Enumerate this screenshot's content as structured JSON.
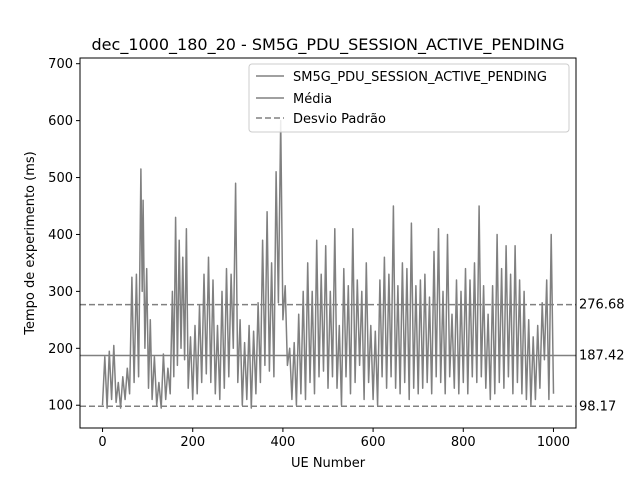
{
  "chart_data": {
    "type": "line",
    "title": "dec_1000_180_20 - SM5G_PDU_SESSION_ACTIVE_PENDING",
    "xlabel": "UE Number",
    "ylabel": "Tempo de experimento (ms)",
    "xlim": [
      -50,
      1050
    ],
    "ylim": [
      60,
      710
    ],
    "x_ticks": [
      0,
      200,
      400,
      600,
      800,
      1000
    ],
    "y_ticks": [
      100,
      200,
      300,
      400,
      500,
      600,
      700
    ],
    "grid": false,
    "legend_position": "upper-right",
    "series": [
      {
        "name": "SM5G_PDU_SESSION_ACTIVE_PENDING",
        "color": "#808080",
        "style": "solid"
      },
      {
        "name": "Média",
        "color": "#808080",
        "style": "solid"
      },
      {
        "name": "Desvio Padrão",
        "color": "#808080",
        "style": "dashed"
      }
    ],
    "peaks": [
      [
        0,
        100
      ],
      [
        5,
        185
      ],
      [
        10,
        95
      ],
      [
        15,
        195
      ],
      [
        20,
        110
      ],
      [
        25,
        205
      ],
      [
        30,
        105
      ],
      [
        35,
        140
      ],
      [
        40,
        95
      ],
      [
        45,
        150
      ],
      [
        50,
        110
      ],
      [
        55,
        165
      ],
      [
        60,
        120
      ],
      [
        65,
        325
      ],
      [
        70,
        140
      ],
      [
        75,
        330
      ],
      [
        80,
        150
      ],
      [
        85,
        515
      ],
      [
        88,
        300
      ],
      [
        90,
        460
      ],
      [
        94,
        200
      ],
      [
        98,
        340
      ],
      [
        102,
        130
      ],
      [
        106,
        250
      ],
      [
        110,
        110
      ],
      [
        115,
        185
      ],
      [
        120,
        100
      ],
      [
        125,
        140
      ],
      [
        130,
        95
      ],
      [
        135,
        190
      ],
      [
        140,
        110
      ],
      [
        145,
        165
      ],
      [
        150,
        120
      ],
      [
        155,
        300
      ],
      [
        158,
        150
      ],
      [
        162,
        430
      ],
      [
        166,
        170
      ],
      [
        170,
        390
      ],
      [
        174,
        200
      ],
      [
        178,
        360
      ],
      [
        182,
        180
      ],
      [
        186,
        410
      ],
      [
        190,
        130
      ],
      [
        195,
        220
      ],
      [
        200,
        110
      ],
      [
        205,
        240
      ],
      [
        210,
        120
      ],
      [
        215,
        275
      ],
      [
        220,
        140
      ],
      [
        225,
        330
      ],
      [
        230,
        155
      ],
      [
        235,
        360
      ],
      [
        240,
        140
      ],
      [
        245,
        320
      ],
      [
        250,
        120
      ],
      [
        255,
        240
      ],
      [
        260,
        110
      ],
      [
        265,
        300
      ],
      [
        270,
        130
      ],
      [
        275,
        340
      ],
      [
        280,
        150
      ],
      [
        285,
        330
      ],
      [
        290,
        200
      ],
      [
        295,
        490
      ],
      [
        300,
        140
      ],
      [
        305,
        250
      ],
      [
        310,
        100
      ],
      [
        315,
        210
      ],
      [
        320,
        110
      ],
      [
        325,
        240
      ],
      [
        330,
        95
      ],
      [
        335,
        230
      ],
      [
        340,
        120
      ],
      [
        345,
        280
      ],
      [
        350,
        140
      ],
      [
        355,
        390
      ],
      [
        360,
        170
      ],
      [
        365,
        440
      ],
      [
        370,
        160
      ],
      [
        375,
        350
      ],
      [
        380,
        150
      ],
      [
        385,
        510
      ],
      [
        390,
        280
      ],
      [
        395,
        600
      ],
      [
        400,
        250
      ],
      [
        405,
        310
      ],
      [
        410,
        170
      ],
      [
        415,
        200
      ],
      [
        420,
        110
      ],
      [
        425,
        210
      ],
      [
        430,
        100
      ],
      [
        435,
        260
      ],
      [
        440,
        120
      ],
      [
        445,
        300
      ],
      [
        450,
        110
      ],
      [
        455,
        350
      ],
      [
        460,
        140
      ],
      [
        465,
        300
      ],
      [
        470,
        120
      ],
      [
        475,
        390
      ],
      [
        480,
        150
      ],
      [
        485,
        330
      ],
      [
        490,
        160
      ],
      [
        495,
        380
      ],
      [
        500,
        130
      ],
      [
        505,
        300
      ],
      [
        510,
        150
      ],
      [
        515,
        410
      ],
      [
        520,
        130
      ],
      [
        525,
        240
      ],
      [
        530,
        100
      ],
      [
        535,
        340
      ],
      [
        540,
        150
      ],
      [
        545,
        310
      ],
      [
        550,
        120
      ],
      [
        555,
        410
      ],
      [
        560,
        140
      ],
      [
        565,
        320
      ],
      [
        570,
        170
      ],
      [
        575,
        300
      ],
      [
        580,
        110
      ],
      [
        585,
        350
      ],
      [
        590,
        140
      ],
      [
        595,
        240
      ],
      [
        600,
        110
      ],
      [
        605,
        230
      ],
      [
        610,
        100
      ],
      [
        615,
        320
      ],
      [
        620,
        150
      ],
      [
        625,
        360
      ],
      [
        630,
        130
      ],
      [
        635,
        330
      ],
      [
        640,
        150
      ],
      [
        645,
        450
      ],
      [
        650,
        130
      ],
      [
        655,
        310
      ],
      [
        660,
        120
      ],
      [
        665,
        350
      ],
      [
        670,
        140
      ],
      [
        675,
        340
      ],
      [
        680,
        110
      ],
      [
        685,
        420
      ],
      [
        690,
        130
      ],
      [
        695,
        310
      ],
      [
        700,
        120
      ],
      [
        705,
        320
      ],
      [
        710,
        130
      ],
      [
        715,
        330
      ],
      [
        720,
        140
      ],
      [
        725,
        290
      ],
      [
        730,
        120
      ],
      [
        735,
        370
      ],
      [
        740,
        150
      ],
      [
        745,
        410
      ],
      [
        750,
        140
      ],
      [
        755,
        300
      ],
      [
        760,
        120
      ],
      [
        765,
        400
      ],
      [
        770,
        150
      ],
      [
        775,
        260
      ],
      [
        780,
        130
      ],
      [
        785,
        320
      ],
      [
        790,
        120
      ],
      [
        795,
        300
      ],
      [
        800,
        140
      ],
      [
        805,
        340
      ],
      [
        810,
        120
      ],
      [
        815,
        320
      ],
      [
        820,
        150
      ],
      [
        825,
        350
      ],
      [
        830,
        140
      ],
      [
        835,
        450
      ],
      [
        840,
        150
      ],
      [
        845,
        310
      ],
      [
        850,
        130
      ],
      [
        855,
        260
      ],
      [
        860,
        110
      ],
      [
        865,
        310
      ],
      [
        870,
        120
      ],
      [
        875,
        400
      ],
      [
        880,
        140
      ],
      [
        885,
        340
      ],
      [
        890,
        130
      ],
      [
        895,
        380
      ],
      [
        900,
        150
      ],
      [
        905,
        330
      ],
      [
        910,
        120
      ],
      [
        915,
        380
      ],
      [
        920,
        140
      ],
      [
        925,
        320
      ],
      [
        930,
        120
      ],
      [
        935,
        300
      ],
      [
        940,
        110
      ],
      [
        945,
        250
      ],
      [
        950,
        100
      ],
      [
        955,
        220
      ],
      [
        960,
        110
      ],
      [
        965,
        240
      ],
      [
        970,
        130
      ],
      [
        975,
        280
      ],
      [
        980,
        180
      ],
      [
        985,
        320
      ],
      [
        990,
        110
      ],
      [
        995,
        400
      ],
      [
        1000,
        120
      ]
    ],
    "reference_lines": [
      {
        "series": "Média",
        "value": 187.42,
        "label": "187.42",
        "style": "solid"
      },
      {
        "series": "Desvio Padrão",
        "value": 276.68,
        "label": "276.68",
        "style": "dashed"
      },
      {
        "series": "Desvio Padrão",
        "value": 98.17,
        "label": "98.17",
        "style": "dashed"
      }
    ]
  }
}
